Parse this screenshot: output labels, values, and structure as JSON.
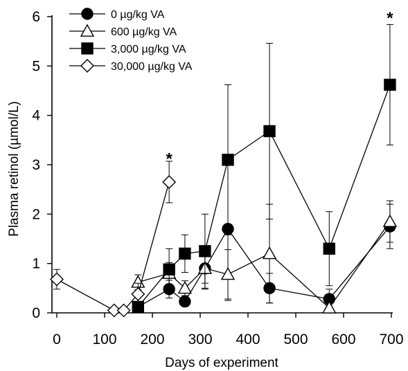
{
  "chart_data": {
    "type": "line",
    "title": "",
    "xlabel": "Days of  experiment",
    "ylabel": "Plasma retinol (µmol/L)",
    "xlim": [
      0,
      700
    ],
    "ylim": [
      0,
      6
    ],
    "xticks": [
      "0",
      "100",
      "200",
      "300",
      "400",
      "500",
      "600",
      "700"
    ],
    "yticks": [
      "0",
      "1",
      "2",
      "3",
      "4",
      "5",
      "6"
    ],
    "legend_position": "top-left",
    "grid": false,
    "series": [
      {
        "name": "0 µg/kg VA",
        "marker": "circle",
        "fill": "filled",
        "x": [
          170,
          235,
          268,
          310,
          358,
          445,
          570,
          697
        ],
        "y": [
          0.12,
          0.48,
          0.23,
          0.9,
          1.7,
          0.5,
          0.28,
          1.75
        ],
        "err": [
          0.05,
          0.18,
          0.1,
          0.42,
          1.45,
          0.3,
          0.2,
          0.45
        ]
      },
      {
        "name": "600 µg/kg VA",
        "marker": "triangle",
        "fill": "open",
        "x": [
          170,
          235,
          268,
          310,
          358,
          445,
          570,
          697
        ],
        "y": [
          0.62,
          0.8,
          0.5,
          0.9,
          0.78,
          1.2,
          0.1,
          1.85
        ],
        "err": [
          0.15,
          0.22,
          0.15,
          0.3,
          0.5,
          1.0,
          0.08,
          0.42
        ]
      },
      {
        "name": "3,000 µg/kg VA",
        "marker": "square",
        "fill": "filled",
        "x": [
          170,
          235,
          268,
          310,
          358,
          445,
          570,
          697
        ],
        "y": [
          0.12,
          0.88,
          1.2,
          1.25,
          3.1,
          3.68,
          1.3,
          4.62
        ],
        "err": [
          0.06,
          0.42,
          0.38,
          0.75,
          1.52,
          1.78,
          0.75,
          1.22
        ]
      },
      {
        "name": "30,000 µg/kg VA",
        "marker": "diamond",
        "fill": "open",
        "x": [
          0,
          120,
          140,
          170,
          235
        ],
        "y": [
          0.68,
          0.05,
          0.05,
          0.38,
          2.65
        ],
        "err": [
          0.2,
          0.03,
          0.03,
          0.22,
          0.42
        ]
      }
    ],
    "annotations": [
      {
        "text": "*",
        "x": 235,
        "y": 3.15
      },
      {
        "text": "*",
        "x": 697,
        "y": 6.0
      }
    ]
  }
}
